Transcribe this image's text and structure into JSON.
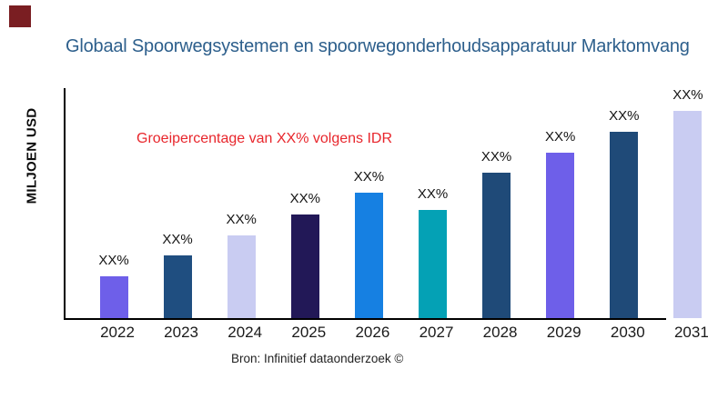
{
  "header": {
    "title": "Globaal Spoorwegsystemen en spoorwegonderhoudsapparatuur Marktomvang",
    "title_color": "#2D5F8C"
  },
  "annotation": {
    "text": "Groeipercentage van XX% volgens IDR",
    "color": "#E8262C"
  },
  "axis": {
    "y_label": "MILJOEN USD"
  },
  "footer": {
    "source": "Bron: Infinitief dataonderzoek ©"
  },
  "branding": {
    "logo_mark_color": "#7A1E22"
  },
  "chart_data": {
    "type": "bar",
    "title": "Globaal Spoorwegsystemen en spoorwegonderhoudsapparatuur Marktomvang",
    "xlabel": "",
    "ylabel": "MILJOEN USD",
    "categories": [
      "2022",
      "2023",
      "2024",
      "2025",
      "2026",
      "2027",
      "2028",
      "2029",
      "2030",
      "2031"
    ],
    "value_labels": [
      "XX%",
      "XX%",
      "XX%",
      "XX%",
      "XX%",
      "XX%",
      "XX%",
      "XX%",
      "XX%",
      "XX%"
    ],
    "values": [
      46,
      69,
      91,
      114,
      138,
      119,
      160,
      182,
      205,
      228
    ],
    "values_note": "relative bar heights in px read from image; numeric values masked as XX% placeholders in source chart",
    "bar_colors": [
      "#6E5FE9",
      "#1F4E80",
      "#C9CCF2",
      "#221857",
      "#1680E2",
      "#04A1B5",
      "#1F4A78",
      "#6E5FE9",
      "#1F4A78",
      "#C9CCF2"
    ],
    "annotation": "Groeipercentage van XX% volgens IDR",
    "source": "Bron: Infinitief dataonderzoek ©",
    "grid": false,
    "legend": "none",
    "axis_color": "#000000",
    "baseline_extends_under_last_bar": false
  }
}
